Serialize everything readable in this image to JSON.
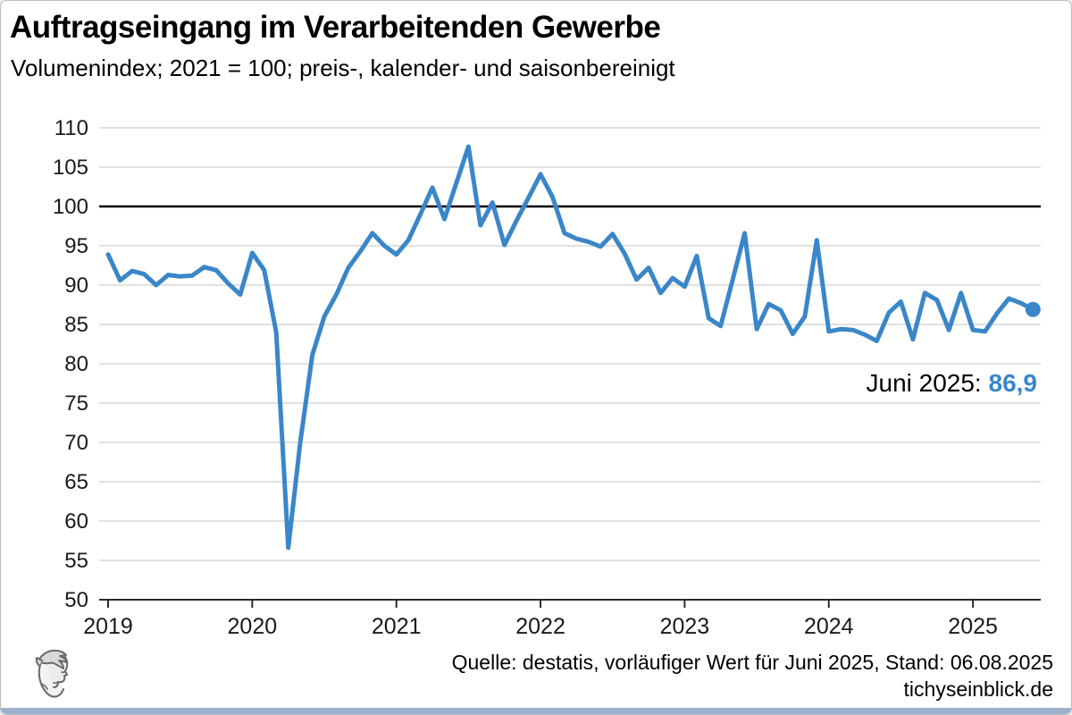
{
  "header": {
    "title": "Auftragseingang im Verarbeitenden Gewerbe",
    "subtitle": "Volumenindex; 2021 = 100; preis-, kalender- und saisonbereinigt"
  },
  "annotation": {
    "label": "Juni 2025: ",
    "value": "86,9"
  },
  "source": {
    "line1": "Quelle: destatis, vorläufiger Wert für Juni 2025, Stand: 06.08.2025",
    "line2": "tichyseinblick.de"
  },
  "colors": {
    "line": "#3a86c8",
    "grid": "#d9d9d9",
    "reference": "#000000",
    "axis": "#2b2b2b",
    "accent_text": "#3a86c8",
    "bottom_bar": "#9cb2cc"
  },
  "chart_data": {
    "type": "line",
    "title": "Auftragseingang im Verarbeitenden Gewerbe",
    "subtitle": "Volumenindex; 2021 = 100; preis-, kalender- und saisonbereinigt",
    "x_start": "2019-01",
    "x_end": "2025-06",
    "x_frequency": "monthly",
    "values": [
      93.9,
      90.6,
      91.8,
      91.4,
      90.0,
      91.3,
      91.1,
      91.2,
      92.3,
      91.9,
      90.2,
      88.8,
      94.1,
      91.9,
      84.0,
      56.6,
      70.0,
      81.1,
      86.0,
      88.8,
      92.2,
      94.3,
      96.6,
      95.0,
      93.9,
      95.7,
      99.0,
      102.4,
      98.4,
      103.0,
      107.6,
      97.6,
      100.5,
      95.1,
      98.2,
      101.1,
      104.1,
      101.2,
      96.6,
      95.9,
      95.5,
      94.9,
      96.5,
      94.0,
      90.7,
      92.2,
      89.0,
      90.9,
      89.8,
      93.7,
      85.8,
      84.8,
      90.7,
      96.6,
      84.4,
      87.6,
      86.8,
      83.8,
      86.0,
      95.7,
      84.1,
      84.4,
      84.3,
      83.7,
      82.9,
      86.5,
      87.9,
      83.1,
      89.0,
      88.1,
      84.3,
      89.0,
      84.3,
      84.1,
      86.4,
      88.3,
      87.7,
      86.9
    ],
    "last_point": {
      "x": "2025-06",
      "y": 86.9,
      "label": "Juni 2025: 86,9",
      "marker": "dot"
    },
    "reference_line": 100,
    "y_ticks": [
      110,
      105,
      100,
      95,
      90,
      85,
      80,
      75,
      70,
      65,
      60,
      55,
      50
    ],
    "x_ticks": [
      "2019",
      "2020",
      "2021",
      "2022",
      "2023",
      "2024",
      "2025"
    ],
    "ylim": [
      50,
      110
    ],
    "grid": true,
    "legend": "none"
  }
}
